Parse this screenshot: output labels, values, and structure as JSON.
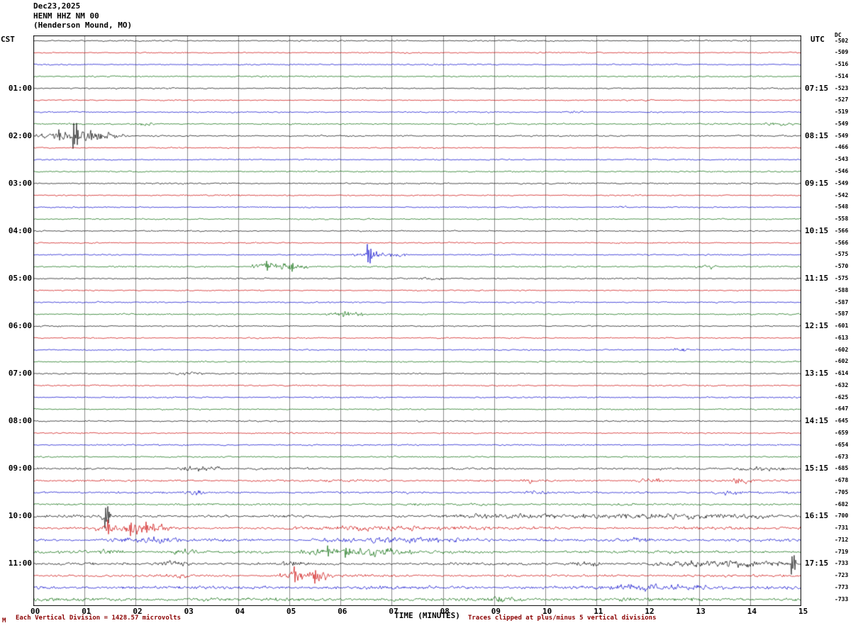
{
  "header": {
    "date": "Dec23,2025",
    "station": "HENM HHZ NM 00",
    "location": "(Henderson Mound, MO)"
  },
  "axes": {
    "left_label": "CST",
    "right_label": "UTC",
    "dc_header": "DC",
    "x_label": "TIME (MINUTES)",
    "x_ticks": [
      "00",
      "01",
      "02",
      "03",
      "04",
      "05",
      "06",
      "07",
      "08",
      "09",
      "10",
      "11",
      "12",
      "13",
      "14",
      "15"
    ],
    "cst_labels": [
      "01:00",
      "02:00",
      "03:00",
      "04:00",
      "05:00",
      "06:00",
      "07:00",
      "08:00",
      "09:00",
      "10:00",
      "11:00"
    ],
    "utc_labels": [
      "07:15",
      "08:15",
      "09:15",
      "10:15",
      "11:15",
      "12:15",
      "13:15",
      "14:15",
      "15:15",
      "16:15",
      "17:15"
    ],
    "dc_offsets": [
      "-502",
      "-509",
      "-516",
      "-514",
      "-523",
      "-527",
      "-519",
      "-549",
      "-549",
      "-466",
      "-543",
      "-546",
      "-549",
      "-542",
      "-548",
      "-558",
      "-566",
      "-566",
      "-575",
      "-570",
      "-575",
      "-588",
      "-587",
      "-587",
      "-601",
      "-613",
      "-602",
      "-602",
      "-614",
      "-632",
      "-625",
      "-647",
      "-645",
      "-659",
      "-654",
      "-673",
      "-685",
      "-678",
      "-705",
      "-682",
      "-700",
      "-731",
      "-712",
      "-719",
      "-733",
      "-723",
      "-773",
      "-733"
    ]
  },
  "footer": {
    "logo_mark": "M",
    "scale_note": "Each Vertical Division = 1428.57 microvolts",
    "clip_note": "Traces clipped at plus/minus 5 vertical divisions"
  },
  "chart_data": {
    "type": "line",
    "subtype": "helicorder_seismogram",
    "title": "HENM HHZ NM 00 (Henderson Mound, MO) Dec23,2025",
    "xlabel": "TIME (MINUTES)",
    "x_range_minutes": [
      0,
      15
    ],
    "x_tick_interval_minutes": 1,
    "num_rows": 48,
    "minutes_per_row": 15,
    "first_row_cst": "00:00",
    "last_row_cst": "11:45",
    "cst_to_utc_offset_hours": 6,
    "hour_label_row_interval": 4,
    "trace_color_cycle": [
      "#000000",
      "#cc0000",
      "#0000cc",
      "#006600"
    ],
    "grid": "vertical gridlines every 1 minute, outer border box",
    "legend": "none",
    "clip_divisions": 5,
    "microvolts_per_division": 1428.57,
    "row_noise_amplitude": [
      1.0,
      0.9,
      0.95,
      1.0,
      1.0,
      0.9,
      1.0,
      1.1,
      1.1,
      0.9,
      0.9,
      1.0,
      1.05,
      1.0,
      0.9,
      1.0,
      1.0,
      0.95,
      1.0,
      1.1,
      1.05,
      0.9,
      1.0,
      1.1,
      1.0,
      0.9,
      1.0,
      1.0,
      1.0,
      0.95,
      1.0,
      1.0,
      1.05,
      1.0,
      1.1,
      1.05,
      1.4,
      1.5,
      1.5,
      1.5,
      1.9,
      2.0,
      2.1,
      2.0,
      1.9,
      1.8,
      2.3,
      2.4
    ],
    "events": [
      {
        "row": 3,
        "start": 1.0,
        "end": 1.3,
        "amp": 1.8
      },
      {
        "row": 6,
        "start": 10.3,
        "end": 10.8,
        "amp": 1.6
      },
      {
        "row": 7,
        "start": 2.05,
        "end": 2.35,
        "amp": 3.0
      },
      {
        "row": 7,
        "start": 14.25,
        "end": 14.85,
        "amp": 2.2
      },
      {
        "row": 8,
        "start": 0.0,
        "end": 1.9,
        "amp": 7.0,
        "spikes": [
          [
            0.5,
            9
          ],
          [
            0.78,
            -26
          ],
          [
            0.84,
            18
          ],
          [
            1.12,
            8
          ]
        ]
      },
      {
        "row": 14,
        "start": 11.3,
        "end": 11.6,
        "amp": 1.5
      },
      {
        "row": 18,
        "start": 6.2,
        "end": 7.3,
        "amp": 4.5,
        "spikes": [
          [
            6.52,
            15
          ],
          [
            6.58,
            -12
          ]
        ]
      },
      {
        "row": 19,
        "start": 4.2,
        "end": 5.4,
        "amp": 5.5,
        "spikes": [
          [
            4.55,
            8
          ],
          [
            5.05,
            -7
          ]
        ]
      },
      {
        "row": 19,
        "start": 12.9,
        "end": 13.35,
        "amp": 3.0
      },
      {
        "row": 20,
        "start": 7.5,
        "end": 8.1,
        "amp": 1.8
      },
      {
        "row": 23,
        "start": 5.7,
        "end": 6.45,
        "amp": 4.5
      },
      {
        "row": 26,
        "start": 12.4,
        "end": 12.85,
        "amp": 2.2
      },
      {
        "row": 28,
        "start": 2.6,
        "end": 3.4,
        "amp": 1.6
      },
      {
        "row": 36,
        "start": 2.8,
        "end": 3.7,
        "amp": 3.0
      },
      {
        "row": 36,
        "start": 13.6,
        "end": 14.9,
        "amp": 2.2
      },
      {
        "row": 37,
        "start": 9.5,
        "end": 9.9,
        "amp": 2.2
      },
      {
        "row": 37,
        "start": 11.7,
        "end": 12.3,
        "amp": 2.8
      },
      {
        "row": 37,
        "start": 13.6,
        "end": 14.1,
        "amp": 2.4
      },
      {
        "row": 38,
        "start": 2.85,
        "end": 3.35,
        "amp": 2.6
      },
      {
        "row": 38,
        "start": 9.55,
        "end": 10.05,
        "amp": 2.4
      },
      {
        "row": 38,
        "start": 13.3,
        "end": 13.95,
        "amp": 2.6
      },
      {
        "row": 40,
        "start": 1.3,
        "end": 1.55,
        "amp": 5.0,
        "spikes": [
          [
            1.4,
            -17
          ],
          [
            1.46,
            14
          ]
        ]
      },
      {
        "row": 40,
        "start": 7.9,
        "end": 14.95,
        "amp": 3.0
      },
      {
        "row": 41,
        "start": 1.2,
        "end": 2.7,
        "amp": 7.0,
        "spikes": [
          [
            1.45,
            12
          ],
          [
            1.9,
            -11
          ],
          [
            2.2,
            9
          ]
        ]
      },
      {
        "row": 41,
        "start": 5.3,
        "end": 9.0,
        "amp": 2.0
      },
      {
        "row": 42,
        "start": 1.4,
        "end": 2.9,
        "amp": 3.5
      },
      {
        "row": 42,
        "start": 5.4,
        "end": 9.0,
        "amp": 2.6
      },
      {
        "row": 42,
        "start": 11.6,
        "end": 12.15,
        "amp": 3.0
      },
      {
        "row": 43,
        "start": 1.3,
        "end": 1.75,
        "amp": 4.0
      },
      {
        "row": 43,
        "start": 2.75,
        "end": 3.25,
        "amp": 3.5
      },
      {
        "row": 43,
        "start": 5.2,
        "end": 7.4,
        "amp": 5.5,
        "spikes": [
          [
            5.75,
            9
          ],
          [
            6.1,
            -8
          ]
        ]
      },
      {
        "row": 44,
        "start": 2.3,
        "end": 3.2,
        "amp": 3.5
      },
      {
        "row": 44,
        "start": 4.8,
        "end": 5.25,
        "amp": 3.0
      },
      {
        "row": 44,
        "start": 10.4,
        "end": 11.15,
        "amp": 3.0
      },
      {
        "row": 44,
        "start": 12.1,
        "end": 14.95,
        "amp": 4.0,
        "spikes": [
          [
            14.8,
            -15
          ],
          [
            14.86,
            12
          ]
        ]
      },
      {
        "row": 45,
        "start": 2.55,
        "end": 3.0,
        "amp": 2.6
      },
      {
        "row": 45,
        "start": 4.8,
        "end": 5.85,
        "amp": 8.0,
        "spikes": [
          [
            5.1,
            13
          ],
          [
            5.5,
            -11
          ]
        ]
      },
      {
        "row": 46,
        "start": 11.2,
        "end": 13.5,
        "amp": 3.5
      },
      {
        "row": 47,
        "start": 8.9,
        "end": 9.6,
        "amp": 2.6
      }
    ]
  }
}
